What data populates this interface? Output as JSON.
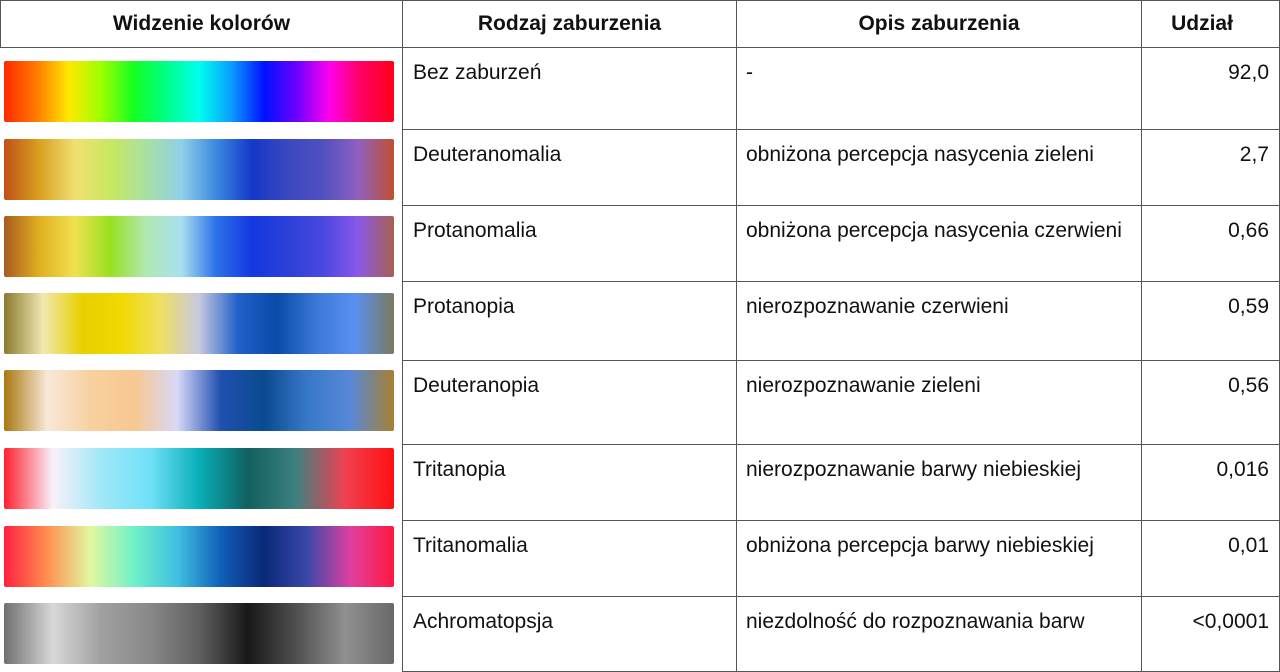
{
  "table": {
    "headers": {
      "vision": "Widzenie kolorów",
      "type": "Rodzaj zaburzenia",
      "description": "Opis zaburzenia",
      "share": "Udział"
    },
    "rows": [
      {
        "type": "Bez zaburzeń",
        "description": "-",
        "share": "92,0",
        "spectrum_colors": [
          "#ff2a00",
          "#ff7a00",
          "#ffe800",
          "#9cff00",
          "#14ff22",
          "#00ff88",
          "#00ffee",
          "#0a9cff",
          "#0012ff",
          "#6a00ff",
          "#ff00ee",
          "#ff0060",
          "#ff0018"
        ]
      },
      {
        "type": "Deuteranomalia",
        "description": "obniżona percepcja nasycenia zieleni",
        "share": "2,7",
        "spectrum_colors": [
          "#c05018",
          "#d8a020",
          "#f0e070",
          "#c8e860",
          "#a8e0a0",
          "#90d0e8",
          "#3a88e0",
          "#1438c8",
          "#3a48c0",
          "#5050c0",
          "#9060c0",
          "#c05030"
        ]
      },
      {
        "type": "Protanomalia",
        "description": "obniżona percepcja nasycenia czerwieni",
        "share": "0,66",
        "spectrum_colors": [
          "#a85a20",
          "#e0b020",
          "#f0e050",
          "#98e020",
          "#b0e8b0",
          "#a8e0f0",
          "#2a70e8",
          "#1438e0",
          "#2a40d8",
          "#4a48e0",
          "#8a58e8",
          "#a86050"
        ]
      },
      {
        "type": "Protanopia",
        "description": "nierozpoznawanie czerwieni",
        "share": "0,59",
        "spectrum_colors": [
          "#8a7a30",
          "#f0e8b0",
          "#e8d000",
          "#f0d800",
          "#f0e060",
          "#c8c8e0",
          "#2060c8",
          "#0a4aa8",
          "#3a78d8",
          "#5a90f0",
          "#7a7a60"
        ]
      },
      {
        "type": "Deuteranopia",
        "description": "nierozpoznawanie zieleni",
        "share": "0,56",
        "spectrum_colors": [
          "#a87810",
          "#f8e8d8",
          "#f8d0a0",
          "#f8c890",
          "#d8d8f8",
          "#2050b0",
          "#0a4a90",
          "#3878c8",
          "#5888d8",
          "#a88030"
        ]
      },
      {
        "type": "Tritanopia",
        "description": "nierozpoznawanie barwy niebieskiej",
        "share": "0,016",
        "spectrum_colors": [
          "#ff2030",
          "#f8f0f8",
          "#a0e8f8",
          "#70e0f8",
          "#08b0b8",
          "#106060",
          "#408080",
          "#f04050",
          "#ff1010"
        ]
      },
      {
        "type": "Tritanomalia",
        "description": "obniżona percepcja barwy niebieskiej",
        "share": "0,01",
        "spectrum_colors": [
          "#ff2040",
          "#ff9050",
          "#e0f8a0",
          "#70f0c8",
          "#40c0e0",
          "#1060b8",
          "#0a2878",
          "#3a48a8",
          "#e040a0",
          "#ff1840"
        ]
      },
      {
        "type": "Achromatopsja",
        "description": "niezdolność do rozpoznawania barw",
        "share": "<0,0001",
        "spectrum_colors": [
          "#707070",
          "#d8d8d8",
          "#a0a0a0",
          "#888888",
          "#606060",
          "#181818",
          "#505050",
          "#909090",
          "#686868"
        ]
      }
    ]
  },
  "colors": {
    "grid_line": "#555555",
    "text": "#111111"
  }
}
